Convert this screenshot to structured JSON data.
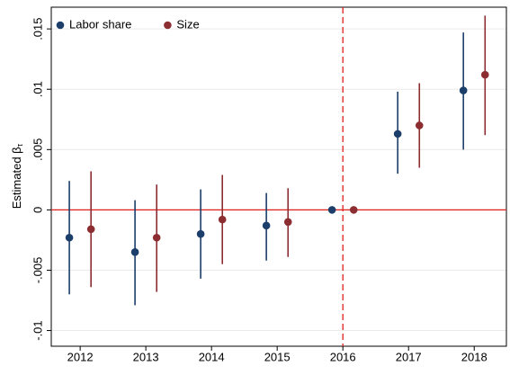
{
  "chart_data": {
    "type": "errorbar",
    "y_label": {
      "text": "Estimated β",
      "subscript": "τ"
    },
    "x": [
      2012,
      2013,
      2014,
      2015,
      2016,
      2017,
      2018
    ],
    "xlim": [
      2011.56,
      2018.49
    ],
    "xticks": [
      2012,
      2013,
      2014,
      2015,
      2016,
      2017,
      2018
    ],
    "ylim": [
      -0.0113,
      0.0168
    ],
    "yticks": [
      {
        "value": -0.01,
        "label": "-.01"
      },
      {
        "value": -0.005,
        "label": "-.005"
      },
      {
        "value": 0,
        "label": "0"
      },
      {
        "value": 0.005,
        "label": ".005"
      },
      {
        "value": 0.01,
        "label": ".01"
      },
      {
        "value": 0.015,
        "label": ".015"
      }
    ],
    "grid": true,
    "legend": "top-left",
    "hline": 0,
    "vline": 2016,
    "series": [
      {
        "name": "Labor share",
        "color": "#1b3e6a",
        "values": [
          -0.0023,
          -0.0035,
          -0.002,
          -0.0013,
          0,
          0.0063,
          0.0099
        ],
        "lower": [
          -0.007,
          -0.0079,
          -0.0057,
          -0.0042,
          0,
          0.003,
          0.005
        ],
        "upper": [
          0.0024,
          0.0008,
          0.0017,
          0.0014,
          0,
          0.0098,
          0.0147
        ]
      },
      {
        "name": "Size",
        "color": "#8c2d31",
        "values": [
          -0.0016,
          -0.0023,
          -0.0008,
          -0.001,
          0,
          0.007,
          0.0112
        ],
        "lower": [
          -0.0064,
          -0.0068,
          -0.0045,
          -0.0039,
          0,
          0.0035,
          0.0062
        ],
        "upper": [
          0.0032,
          0.0021,
          0.0029,
          0.0018,
          0,
          0.0105,
          0.0161
        ]
      }
    ]
  }
}
